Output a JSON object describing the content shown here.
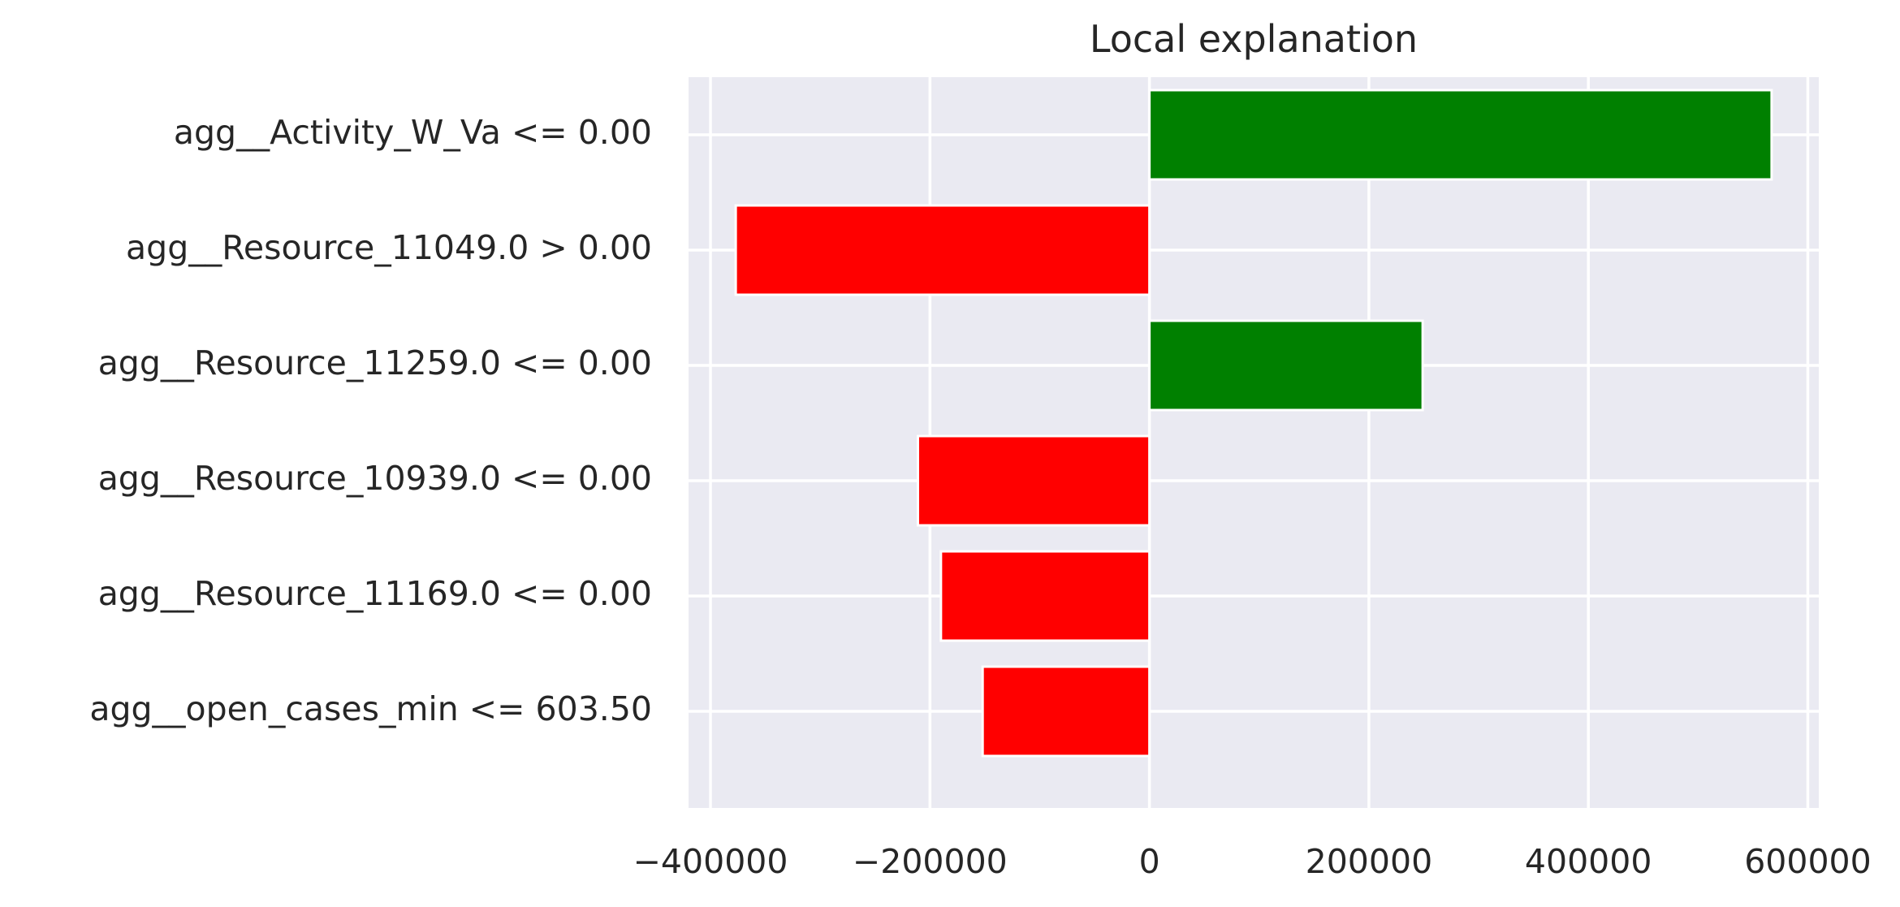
{
  "chart_data": {
    "type": "bar",
    "orientation": "horizontal",
    "title": "Local explanation",
    "xlabel": "",
    "ylabel": "",
    "categories": [
      "agg__Activity_W_Va <= 0.00",
      "agg__Resource_11049.0 > 0.00",
      "agg__Resource_11259.0 <= 0.00",
      "agg__Resource_10939.0 <= 0.00",
      "agg__Resource_11169.0 <= 0.00",
      "agg__open_cases_min <= 603.50"
    ],
    "values": [
      567000,
      -377000,
      249000,
      -211000,
      -190000,
      -152000
    ],
    "xlim": [
      -420000,
      610000
    ],
    "xticks": [
      -400000,
      -200000,
      0,
      200000,
      400000,
      600000
    ],
    "xtick_labels": [
      "−400000",
      "−200000",
      "0",
      "200000",
      "400000",
      "600000"
    ],
    "grid": true,
    "colors": {
      "positive": "#008000",
      "negative": "#ff0000",
      "background": "#eaeaf2",
      "grid": "#ffffff",
      "text": "#262626"
    }
  }
}
